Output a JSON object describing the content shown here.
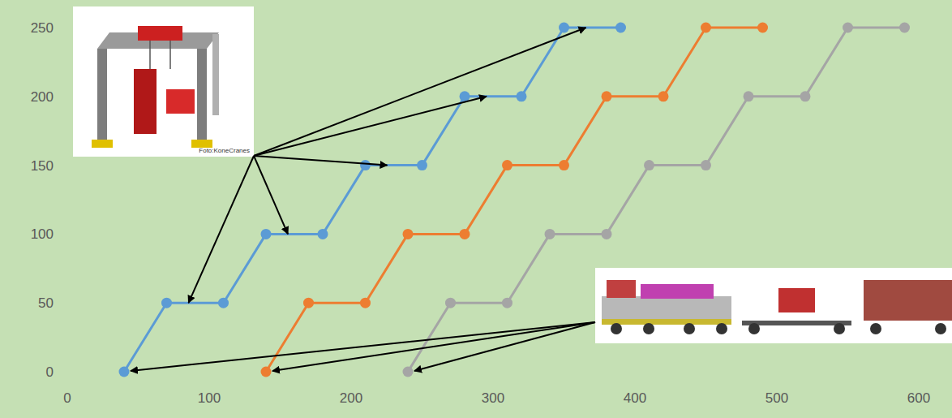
{
  "chart_data": {
    "type": "line",
    "annotations": [
      "Foto:KoneCranes"
    ],
    "series": [
      {
        "color": "#5b9bd5",
        "marker": "circle",
        "x": [
          40,
          70,
          110,
          140,
          180,
          210,
          250,
          280,
          320,
          350,
          390
        ],
        "values": [
          0,
          50,
          50,
          100,
          100,
          150,
          150,
          200,
          200,
          250,
          250
        ]
      },
      {
        "color": "#ed7d31",
        "marker": "circle",
        "x": [
          140,
          170,
          210,
          240,
          280,
          310,
          350,
          380,
          420,
          450,
          490
        ],
        "values": [
          0,
          50,
          50,
          100,
          100,
          150,
          150,
          200,
          200,
          250,
          250
        ]
      },
      {
        "color": "#a5a5a5",
        "marker": "circle",
        "x": [
          240,
          270,
          310,
          340,
          380,
          410,
          450,
          480,
          520,
          550,
          590
        ],
        "values": [
          0,
          50,
          50,
          100,
          100,
          150,
          150,
          200,
          200,
          250,
          250
        ]
      }
    ],
    "xlim": [
      0,
      600
    ],
    "xticks": [
      0,
      100,
      200,
      300,
      400,
      500,
      600
    ],
    "ylim": [
      0,
      250
    ],
    "yticks": [
      0,
      50,
      100,
      150,
      200,
      250
    ],
    "grid": false
  }
}
